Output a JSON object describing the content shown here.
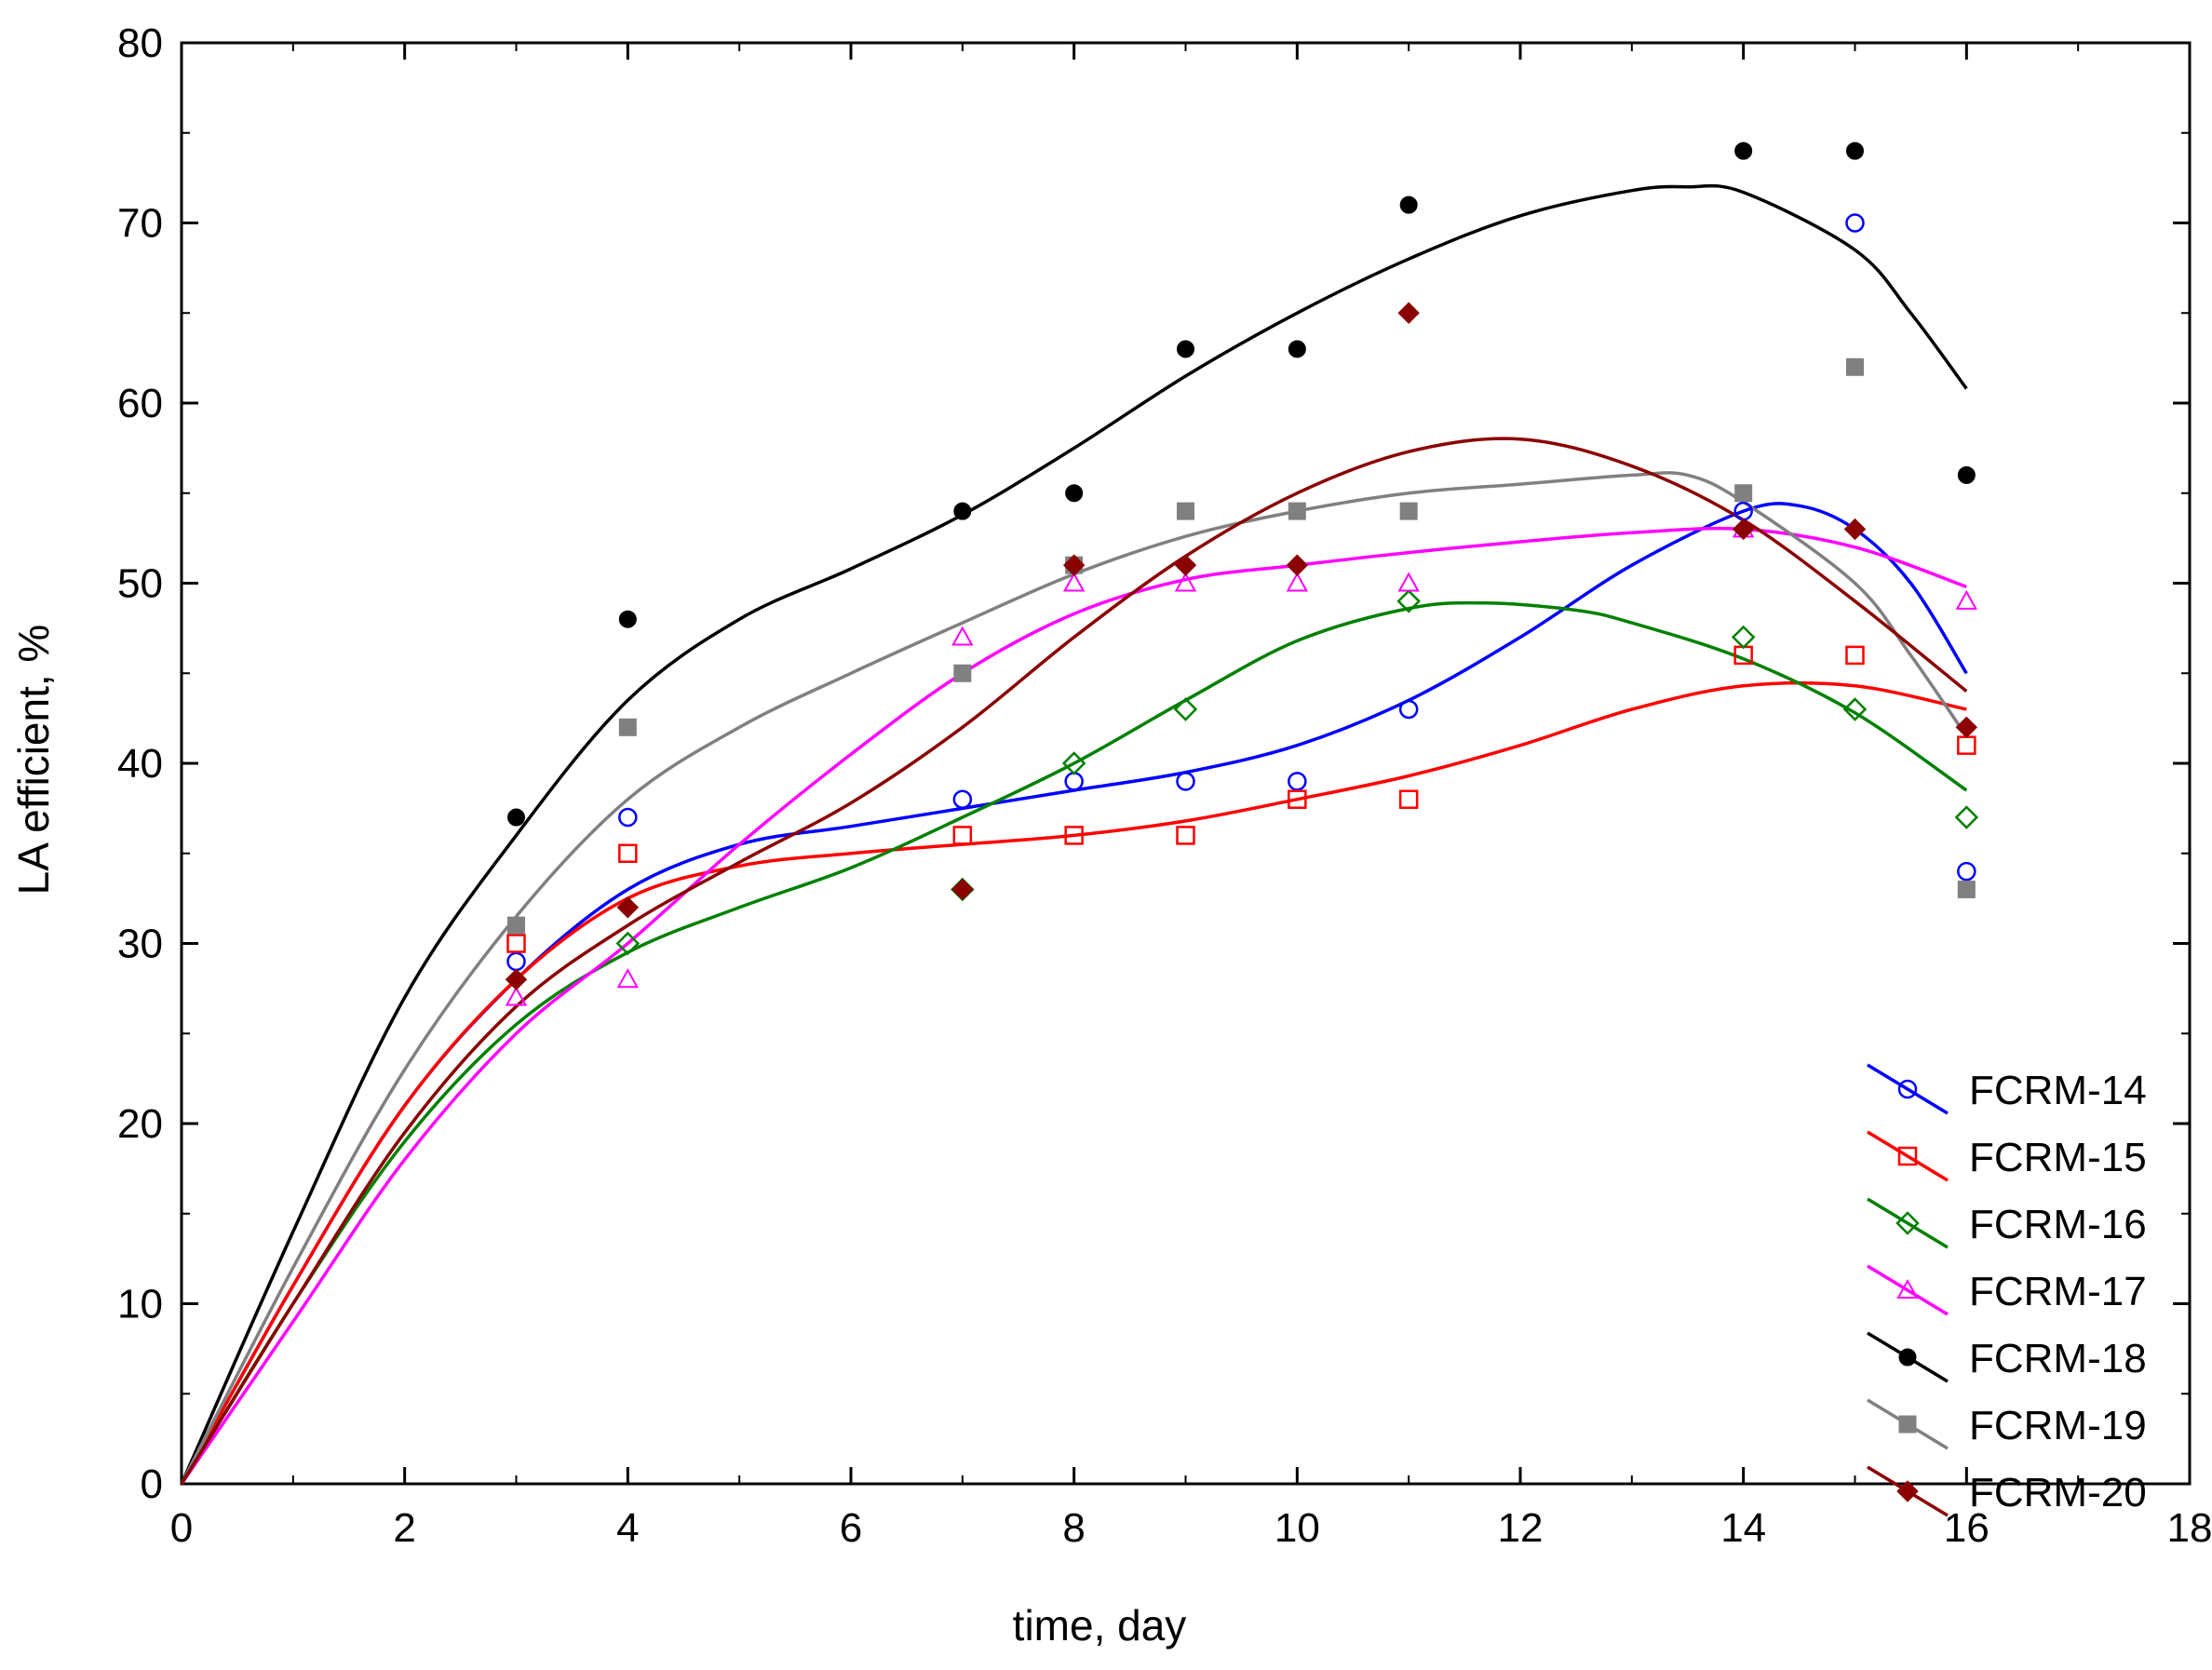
{
  "chart_data": {
    "type": "scatter",
    "title": "",
    "xlabel": "time, day",
    "ylabel": "LA efficient, %",
    "xlim": [
      0,
      18
    ],
    "ylim": [
      0,
      80
    ],
    "xticks": [
      0,
      2,
      4,
      6,
      8,
      10,
      12,
      14,
      16,
      18
    ],
    "yticks": [
      0,
      10,
      20,
      30,
      40,
      50,
      60,
      70,
      80
    ],
    "grid": false,
    "legend_position": "bottom-right",
    "fit": "smoothed curve through origin",
    "series": [
      {
        "name": "FCRM-14",
        "color": "#0000ff",
        "marker": "open-circle",
        "points": [
          [
            3,
            29
          ],
          [
            4,
            37
          ],
          [
            7,
            38
          ],
          [
            8,
            39
          ],
          [
            9,
            39
          ],
          [
            10,
            39
          ],
          [
            11,
            43
          ],
          [
            14,
            54
          ],
          [
            15,
            70
          ],
          [
            16,
            34
          ]
        ],
        "curve": [
          [
            0,
            0
          ],
          [
            1,
            11
          ],
          [
            2,
            21
          ],
          [
            3,
            28
          ],
          [
            4,
            33
          ],
          [
            5,
            35.5
          ],
          [
            6,
            36.5
          ],
          [
            7,
            37.5
          ],
          [
            8,
            38.5
          ],
          [
            9,
            39.5
          ],
          [
            10,
            41
          ],
          [
            11,
            43.5
          ],
          [
            12,
            47
          ],
          [
            13,
            51
          ],
          [
            14,
            54
          ],
          [
            14.5,
            54.3
          ],
          [
            15,
            53
          ],
          [
            15.5,
            50
          ],
          [
            16,
            45
          ]
        ]
      },
      {
        "name": "FCRM-15",
        "color": "#ff0000",
        "marker": "open-square",
        "points": [
          [
            3,
            30
          ],
          [
            4,
            35
          ],
          [
            7,
            36
          ],
          [
            8,
            36
          ],
          [
            9,
            36
          ],
          [
            10,
            38
          ],
          [
            11,
            38
          ],
          [
            14,
            46
          ],
          [
            15,
            46
          ],
          [
            16,
            41
          ]
        ],
        "curve": [
          [
            0,
            0
          ],
          [
            1,
            11
          ],
          [
            2,
            21
          ],
          [
            3,
            28
          ],
          [
            4,
            32.5
          ],
          [
            5,
            34.3
          ],
          [
            6,
            35
          ],
          [
            7,
            35.5
          ],
          [
            8,
            36
          ],
          [
            9,
            36.8
          ],
          [
            10,
            38
          ],
          [
            11,
            39.3
          ],
          [
            12,
            41
          ],
          [
            13,
            43
          ],
          [
            14,
            44.3
          ],
          [
            15,
            44.3
          ],
          [
            16,
            43
          ]
        ]
      },
      {
        "name": "FCRM-16",
        "color": "#008000",
        "marker": "open-diamond",
        "points": [
          [
            4,
            30
          ],
          [
            7,
            33
          ],
          [
            8,
            40
          ],
          [
            9,
            43
          ],
          [
            11,
            49
          ],
          [
            14,
            47
          ],
          [
            15,
            43
          ],
          [
            16,
            37
          ]
        ],
        "curve": [
          [
            0,
            0
          ],
          [
            1,
            10
          ],
          [
            2,
            19
          ],
          [
            3,
            25.5
          ],
          [
            4,
            29.5
          ],
          [
            5,
            32
          ],
          [
            6,
            34.2
          ],
          [
            7,
            37
          ],
          [
            8,
            40
          ],
          [
            9,
            43.5
          ],
          [
            10,
            46.8
          ],
          [
            11,
            48.6
          ],
          [
            11.7,
            48.9
          ],
          [
            12.5,
            48.5
          ],
          [
            13,
            47.8
          ],
          [
            14,
            45.8
          ],
          [
            15,
            42.8
          ],
          [
            16,
            38.5
          ]
        ]
      },
      {
        "name": "FCRM-17",
        "color": "#ff00ff",
        "marker": "open-triangle",
        "points": [
          [
            3,
            27
          ],
          [
            4,
            28
          ],
          [
            7,
            47
          ],
          [
            8,
            50
          ],
          [
            9,
            50
          ],
          [
            10,
            50
          ],
          [
            11,
            50
          ],
          [
            14,
            53
          ],
          [
            16,
            49
          ]
        ],
        "curve": [
          [
            0,
            0
          ],
          [
            1,
            9
          ],
          [
            2,
            18
          ],
          [
            3,
            25
          ],
          [
            4,
            30
          ],
          [
            5,
            35.5
          ],
          [
            6,
            40.5
          ],
          [
            7,
            45
          ],
          [
            8,
            48.3
          ],
          [
            9,
            50.2
          ],
          [
            10,
            51
          ],
          [
            11,
            51.7
          ],
          [
            12,
            52.3
          ],
          [
            13,
            52.8
          ],
          [
            14,
            53
          ],
          [
            15,
            52
          ],
          [
            16,
            49.8
          ]
        ]
      },
      {
        "name": "FCRM-18",
        "color": "#000000",
        "marker": "filled-circle",
        "points": [
          [
            3,
            37
          ],
          [
            4,
            48
          ],
          [
            7,
            54
          ],
          [
            8,
            55
          ],
          [
            9,
            63
          ],
          [
            10,
            63
          ],
          [
            11,
            71
          ],
          [
            14,
            74
          ],
          [
            15,
            74
          ],
          [
            16,
            56
          ]
        ],
        "curve": [
          [
            0,
            0
          ],
          [
            1,
            14
          ],
          [
            2,
            27
          ],
          [
            3,
            36
          ],
          [
            4,
            43.5
          ],
          [
            5,
            48
          ],
          [
            6,
            50.8
          ],
          [
            7,
            53.8
          ],
          [
            8,
            57.5
          ],
          [
            9,
            61.5
          ],
          [
            10,
            65
          ],
          [
            11,
            68
          ],
          [
            12,
            70.4
          ],
          [
            13,
            71.8
          ],
          [
            13.5,
            72
          ],
          [
            14,
            71.7
          ],
          [
            15,
            68.5
          ],
          [
            15.5,
            65
          ],
          [
            16,
            60.8
          ]
        ]
      },
      {
        "name": "FCRM-19",
        "color": "#808080",
        "marker": "filled-square",
        "points": [
          [
            3,
            31
          ],
          [
            4,
            42
          ],
          [
            7,
            45
          ],
          [
            8,
            51
          ],
          [
            9,
            54
          ],
          [
            10,
            54
          ],
          [
            11,
            54
          ],
          [
            14,
            55
          ],
          [
            15,
            62
          ],
          [
            16,
            33
          ]
        ],
        "curve": [
          [
            0,
            0
          ],
          [
            1,
            12
          ],
          [
            2,
            23
          ],
          [
            3,
            31.5
          ],
          [
            4,
            38
          ],
          [
            5,
            42
          ],
          [
            6,
            45
          ],
          [
            7,
            47.8
          ],
          [
            8,
            50.5
          ],
          [
            9,
            52.6
          ],
          [
            10,
            54
          ],
          [
            11,
            55
          ],
          [
            12,
            55.5
          ],
          [
            13,
            56
          ],
          [
            13.5,
            56
          ],
          [
            14,
            54.5
          ],
          [
            15,
            50
          ],
          [
            15.5,
            46
          ],
          [
            16,
            41.5
          ]
        ]
      },
      {
        "name": "FCRM-20",
        "color": "#8b0000",
        "marker": "filled-diamond",
        "points": [
          [
            3,
            28
          ],
          [
            4,
            32
          ],
          [
            7,
            33
          ],
          [
            8,
            51
          ],
          [
            9,
            51
          ],
          [
            10,
            51
          ],
          [
            11,
            65
          ],
          [
            14,
            53
          ],
          [
            15,
            53
          ],
          [
            16,
            42
          ]
        ],
        "curve": [
          [
            0,
            0
          ],
          [
            1,
            10
          ],
          [
            2,
            19.5
          ],
          [
            3,
            26.5
          ],
          [
            4,
            31
          ],
          [
            5,
            34.5
          ],
          [
            6,
            37.8
          ],
          [
            7,
            42
          ],
          [
            8,
            47
          ],
          [
            9,
            51.5
          ],
          [
            10,
            55
          ],
          [
            11,
            57.3
          ],
          [
            12,
            58
          ],
          [
            13,
            56.5
          ],
          [
            14,
            53.5
          ],
          [
            15,
            49
          ],
          [
            16,
            44
          ]
        ]
      }
    ]
  }
}
